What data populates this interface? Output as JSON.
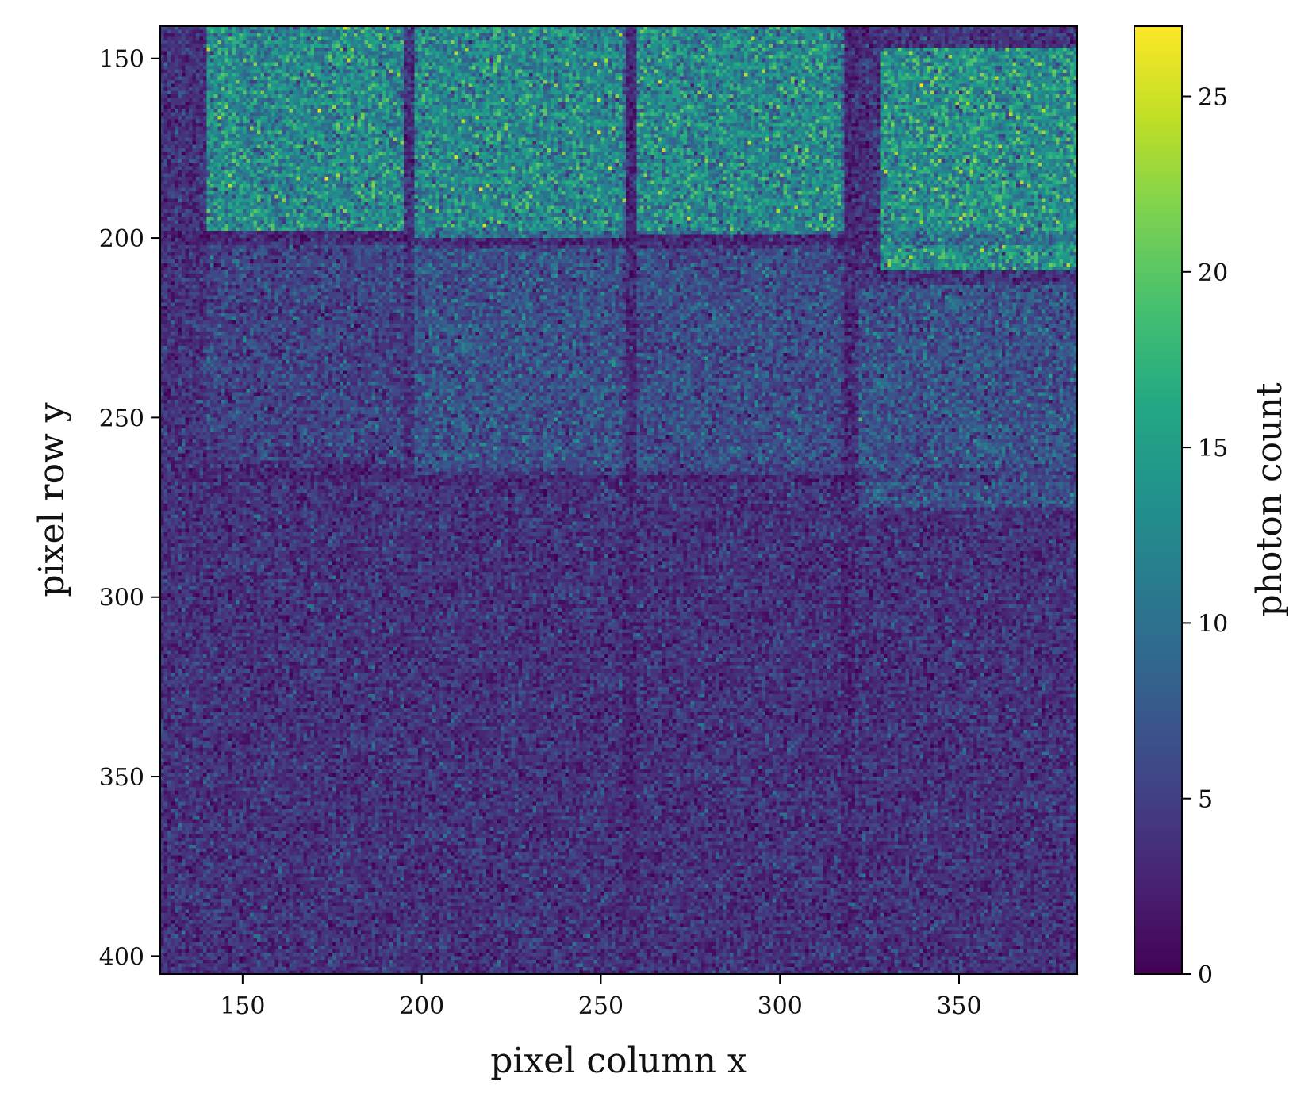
{
  "chart_data": {
    "type": "heatmap",
    "xlabel": "pixel column x",
    "ylabel": "pixel row y",
    "xlim": [
      127,
      383
    ],
    "ylim": [
      405,
      141
    ],
    "xticks": [
      150,
      200,
      250,
      300,
      350
    ],
    "yticks": [
      150,
      200,
      250,
      300,
      350,
      400
    ],
    "colorbar": {
      "label": "photon count",
      "colormap": "viridis",
      "vmin": 0,
      "vmax": 27,
      "ticks": [
        0,
        5,
        10,
        15,
        20,
        25
      ]
    },
    "background_level": 4,
    "regions": [
      {
        "x": [
          140,
          195
        ],
        "y": [
          141,
          198
        ],
        "mean": 13
      },
      {
        "x": [
          198,
          257
        ],
        "y": [
          141,
          200
        ],
        "mean": 13
      },
      {
        "x": [
          260,
          318
        ],
        "y": [
          141,
          199
        ],
        "mean": 13
      },
      {
        "x": [
          328,
          383
        ],
        "y": [
          147,
          209
        ],
        "mean": 14
      },
      {
        "x": [
          140,
          195
        ],
        "y": [
          201,
          262
        ],
        "mean": 5.5
      },
      {
        "x": [
          198,
          257
        ],
        "y": [
          203,
          266
        ],
        "mean": 7
      },
      {
        "x": [
          260,
          318
        ],
        "y": [
          203,
          266
        ],
        "mean": 6.5
      },
      {
        "x": [
          322,
          383
        ],
        "y": [
          213,
          275
        ],
        "mean": 7
      },
      {
        "x": [
          127,
          383
        ],
        "y": [
          270,
          405
        ],
        "mean": 4
      }
    ],
    "dark_lines": [
      {
        "orientation": "vertical",
        "x": 258
      },
      {
        "orientation": "vertical",
        "x": 319
      },
      {
        "orientation": "horizontal",
        "y": 200
      },
      {
        "orientation": "horizontal",
        "y": 266
      }
    ]
  }
}
